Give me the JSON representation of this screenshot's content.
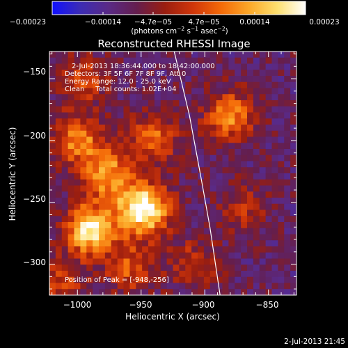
{
  "chart_data": {
    "type": "heatmap",
    "title": "Reconstructed RHESSI Image",
    "xlabel": "Heliocentric X (arcsec)",
    "ylabel": "Heliocentric Y (arcsec)",
    "xlim": [
      -1022,
      -828
    ],
    "ylim": [
      -325,
      -128
    ],
    "xticks": [
      -1000,
      -950,
      -900,
      -850
    ],
    "yticks": [
      -150,
      -200,
      -250,
      -300
    ],
    "xtick_labels": [
      "−1000",
      "−950",
      "−900",
      "−850"
    ],
    "ytick_labels": [
      "−150",
      "−200",
      "−250",
      "−300"
    ],
    "colorbar": {
      "range": [
        -0.00023,
        0.00023
      ],
      "tick_labels": [
        "−0.00023",
        "−0.00014",
        "−4.7e−05",
        "4.7e−05",
        "0.00014",
        "0.00023"
      ],
      "unit_main": "(photons cm",
      "unit_sup1": "−2",
      "unit_mid1": " s",
      "unit_sup2": "−1",
      "unit_mid2": " asec",
      "unit_sup3": "−2",
      "unit_end": ")",
      "colors": [
        "#1010ff",
        "#3c2cb4",
        "#5a2a86",
        "#641e4e",
        "#9a1e10",
        "#d0360a",
        "#f46a08",
        "#fca828",
        "#fde070",
        "#ffffff"
      ]
    },
    "annotations": [
      "2-Jul-2013 18:36:44.000 to 18:42:00.000",
      "Detectors: 3F 5F 6F 7F 8F 9F, Att 0",
      "Energy Range: 12.0 - 25.0 keV",
      "Clean     Total counts: 1.02E+04"
    ],
    "peak_text": "Position of Peak = [-948,-256]",
    "peak": [
      -948,
      -256
    ],
    "limb_curve": [
      [
        -924,
        -128
      ],
      [
        -912,
        -180
      ],
      [
        -903,
        -230
      ],
      [
        -896,
        -270
      ],
      [
        -888,
        -325
      ]
    ],
    "sources": [
      {
        "x": -948,
        "y": -256,
        "amplitude": 1.0
      },
      {
        "x": -990,
        "y": -272,
        "amplitude": 0.85
      },
      {
        "x": -975,
        "y": -228,
        "amplitude": 0.6
      },
      {
        "x": -1000,
        "y": -200,
        "amplitude": 0.55
      },
      {
        "x": -940,
        "y": -198,
        "amplitude": 0.45
      },
      {
        "x": -880,
        "y": -180,
        "amplitude": 0.55
      },
      {
        "x": -995,
        "y": -152,
        "amplitude": 0.35
      },
      {
        "x": -958,
        "y": -303,
        "amplitude": 0.4
      },
      {
        "x": -908,
        "y": -300,
        "amplitude": 0.3
      },
      {
        "x": -870,
        "y": -255,
        "amplitude": 0.25
      },
      {
        "x": -1012,
        "y": -315,
        "amplitude": 0.3
      }
    ]
  },
  "footer": {
    "date": "2-Jul-2013 21:45"
  }
}
